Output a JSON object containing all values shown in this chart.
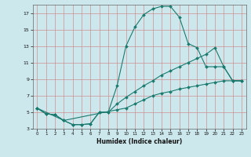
{
  "xlabel": "Humidex (Indice chaleur)",
  "bg_color": "#cde8ed",
  "grid_color_h": "#e8a0a0",
  "grid_color_v": "#e8a0a0",
  "line_color": "#1a7a6e",
  "xlim": [
    -0.5,
    23.5
  ],
  "ylim": [
    3,
    18
  ],
  "xticks": [
    0,
    1,
    2,
    3,
    4,
    5,
    6,
    7,
    8,
    9,
    10,
    11,
    12,
    13,
    14,
    15,
    16,
    17,
    18,
    19,
    20,
    21,
    22,
    23
  ],
  "yticks": [
    3,
    5,
    7,
    9,
    11,
    13,
    15,
    17
  ],
  "line1_x": [
    0,
    1,
    2,
    3,
    4,
    5,
    6,
    7,
    8,
    9,
    10,
    11,
    12,
    13,
    14,
    15,
    16,
    17,
    18,
    19,
    20,
    21,
    22,
    23
  ],
  "line1_y": [
    5.5,
    4.8,
    4.7,
    4.0,
    3.5,
    3.5,
    3.6,
    5.0,
    5.0,
    8.2,
    13.0,
    15.3,
    16.8,
    17.5,
    17.8,
    17.8,
    16.5,
    13.3,
    12.8,
    10.5,
    10.5,
    10.5,
    8.8,
    8.8
  ],
  "line2_x": [
    0,
    1,
    2,
    3,
    4,
    5,
    6,
    7,
    8,
    9,
    10,
    11,
    12,
    13,
    14,
    15,
    16,
    17,
    18,
    19,
    20,
    21,
    22,
    23
  ],
  "line2_y": [
    5.5,
    4.8,
    4.7,
    4.0,
    3.5,
    3.5,
    3.6,
    5.0,
    5.0,
    6.0,
    6.8,
    7.5,
    8.2,
    8.8,
    9.5,
    10.0,
    10.5,
    11.0,
    11.5,
    12.0,
    12.8,
    10.5,
    8.8,
    8.8
  ],
  "line3_x": [
    0,
    3,
    9,
    10,
    11,
    12,
    13,
    14,
    15,
    16,
    17,
    18,
    19,
    20,
    21,
    22,
    23
  ],
  "line3_y": [
    5.5,
    4.0,
    5.3,
    5.5,
    6.0,
    6.5,
    7.0,
    7.3,
    7.5,
    7.8,
    8.0,
    8.2,
    8.4,
    8.6,
    8.8,
    8.8,
    8.8
  ]
}
